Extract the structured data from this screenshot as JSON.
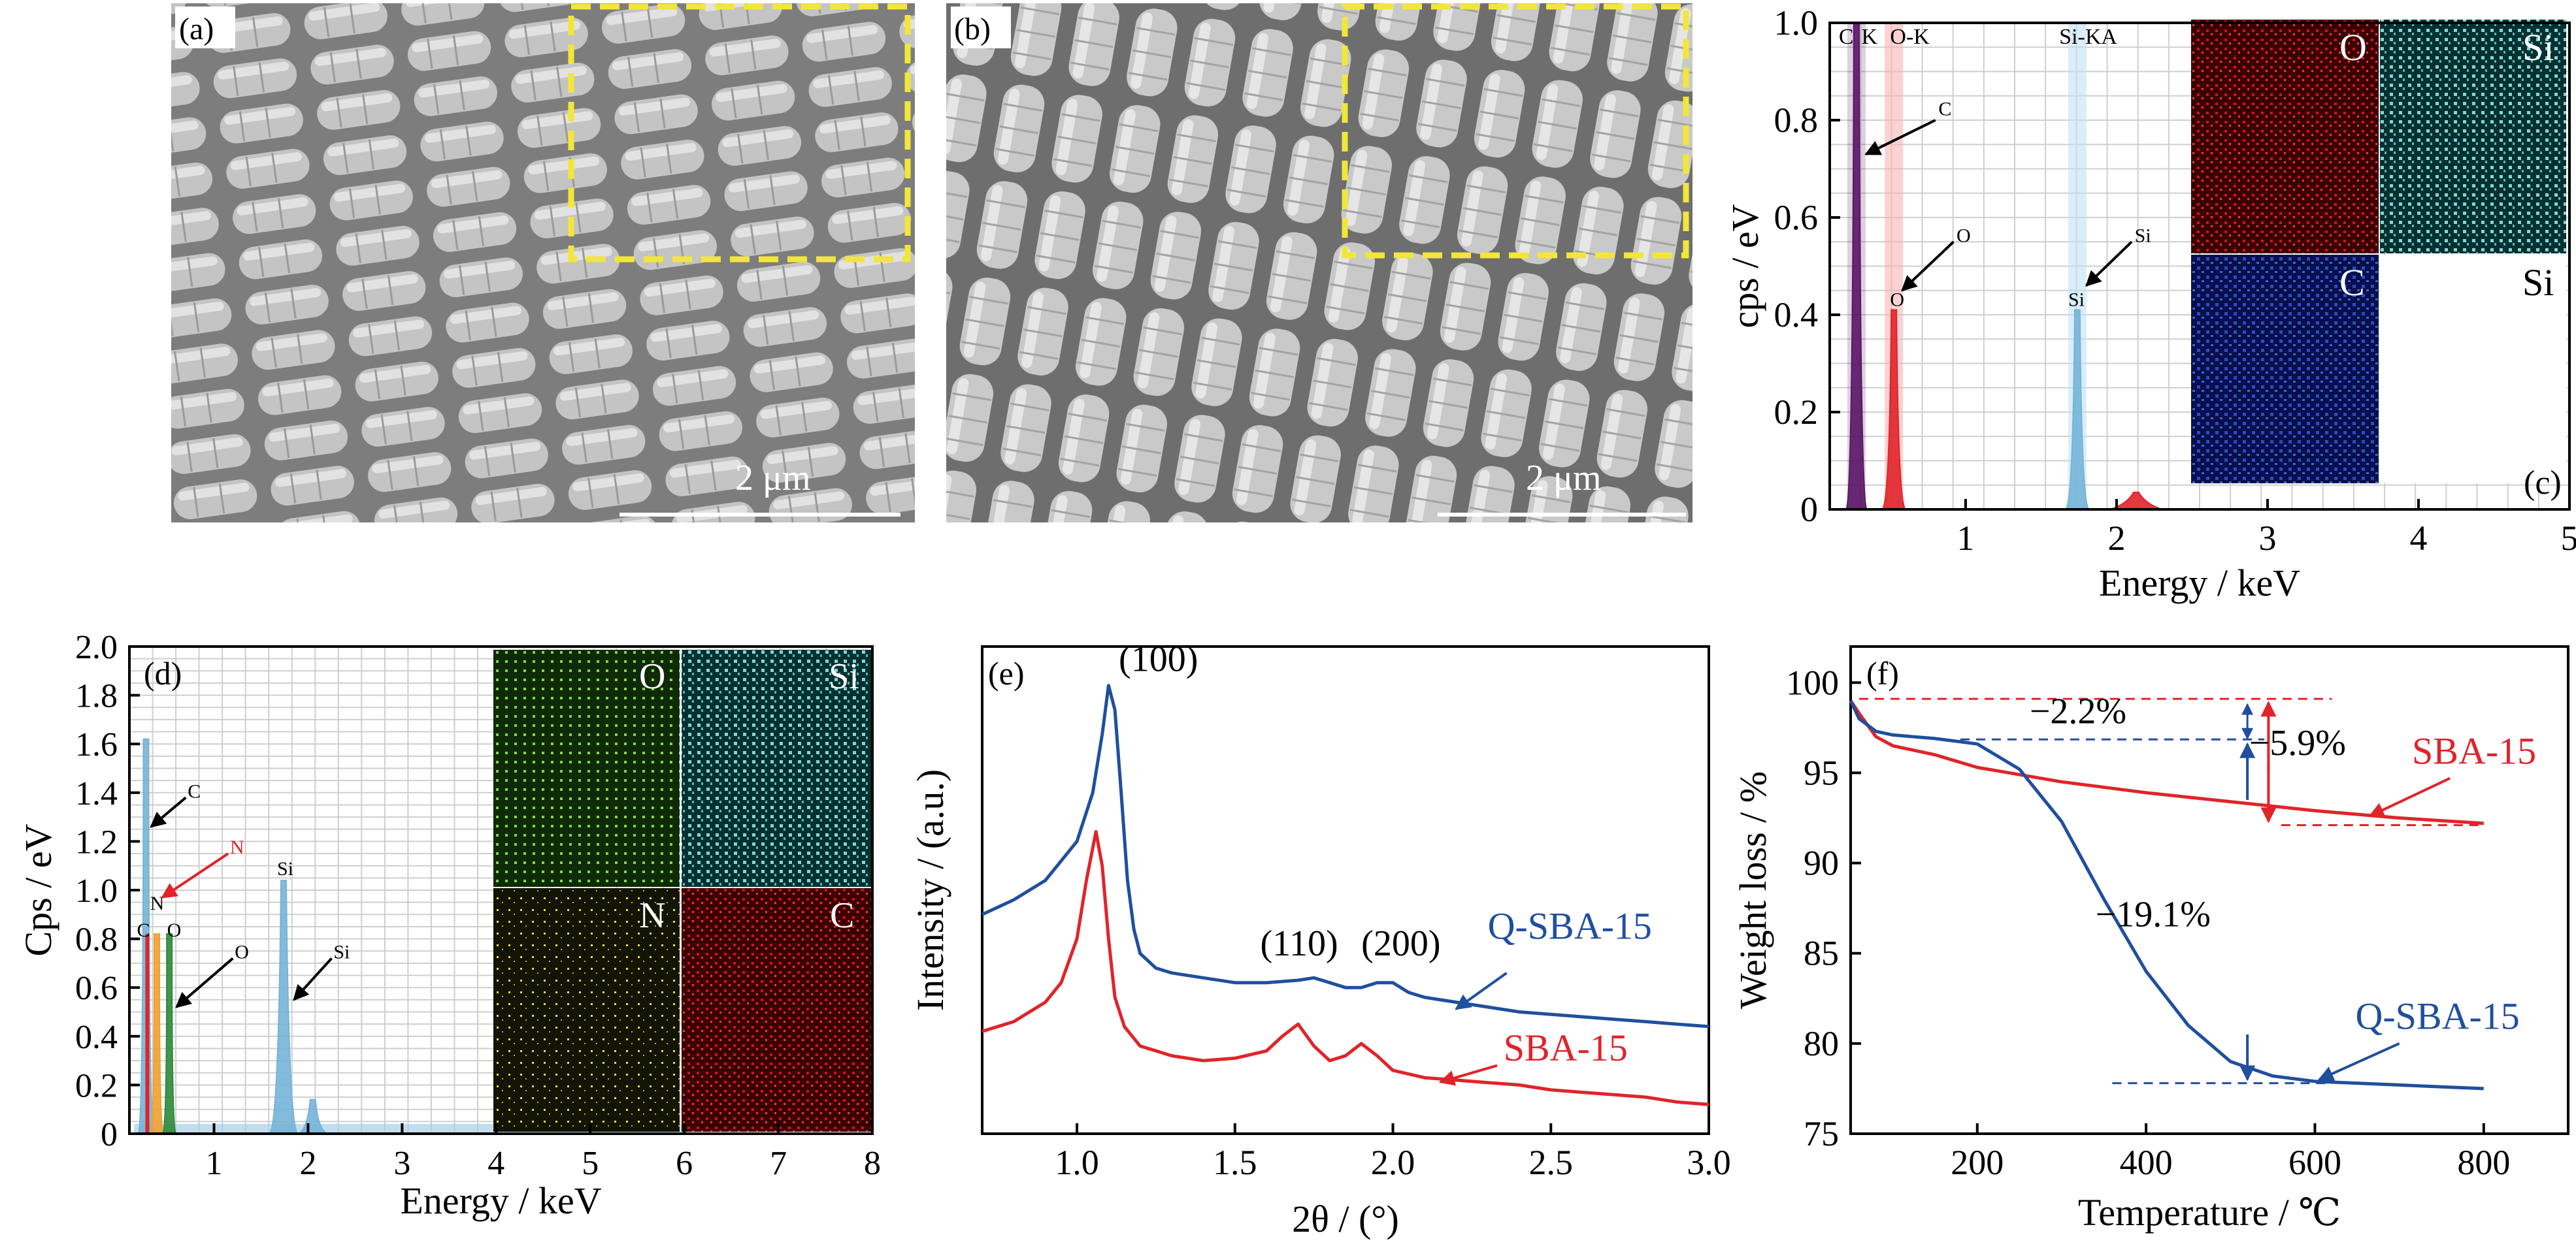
{
  "colors": {
    "red": "#e0242a",
    "blue": "#1f4f9e",
    "lightblue": "#76b4d8",
    "purple": "#5b1466",
    "green": "#2c8a3a",
    "orange": "#f0a030",
    "yellow": "#f2e63a",
    "grid": "#cfcfcf"
  },
  "panel_labels": {
    "a": "(a)",
    "b": "(b)",
    "c": "(c)",
    "d": "(d)",
    "e": "(e)",
    "f": "(f)"
  },
  "sem": {
    "scale_label_a": "2 μm",
    "scale_label_b": "2 μm"
  },
  "maps": {
    "c": {
      "O": "O",
      "Si": "Si",
      "C": "C",
      "Si2": "Si"
    },
    "d": {
      "O": "O",
      "Si": "Si",
      "N": "N",
      "C": "C"
    }
  },
  "chart_data": [
    {
      "id": "c",
      "type": "bar",
      "xlabel": "Energy / keV",
      "ylabel": "cps / eV",
      "xlim": [
        0.1,
        5
      ],
      "ylim": [
        0,
        1.0
      ],
      "xticks": [
        1,
        2,
        3,
        4,
        5
      ],
      "yticks": [
        0,
        0.2,
        0.4,
        0.6,
        0.8,
        1.0
      ],
      "ytick_labels": [
        "0",
        "0.2",
        "0.4",
        "0.6",
        "0.8",
        "1.0"
      ],
      "grid": true,
      "line_labels": [
        "C",
        "K",
        "O-K",
        "Si-KA"
      ],
      "peaks": [
        {
          "element": "C",
          "energy": 0.277,
          "height": 1.0,
          "color": "#5b1466"
        },
        {
          "element": "O",
          "energy": 0.525,
          "height": 0.41,
          "color": "#e0242a"
        },
        {
          "element": "Si",
          "energy": 1.74,
          "height": 0.41,
          "color": "#76b4d8"
        }
      ],
      "annotations": [
        {
          "text": "C",
          "at": [
            0.3,
            0.73
          ]
        },
        {
          "text": "O",
          "at": [
            0.53,
            0.45
          ]
        },
        {
          "text": "Si",
          "at": [
            1.77,
            0.45
          ]
        }
      ]
    },
    {
      "id": "d",
      "type": "bar",
      "xlabel": "Energy / keV",
      "ylabel": "Cps / eV",
      "xlim": [
        0.1,
        8
      ],
      "ylim": [
        0,
        2.0
      ],
      "xticks": [
        1,
        2,
        3,
        4,
        5,
        6,
        7,
        8
      ],
      "yticks": [
        0,
        0.2,
        0.4,
        0.6,
        0.8,
        1.0,
        1.2,
        1.4,
        1.6,
        1.8,
        2.0
      ],
      "ytick_labels": [
        "0",
        "0.2",
        "0.4",
        "0.6",
        "0.8",
        "1.0",
        "1.2",
        "1.4",
        "1.6",
        "1.8",
        "2.0"
      ],
      "grid": true,
      "peaks": [
        {
          "element": "C",
          "energy": 0.277,
          "height": 1.62,
          "color": "#76b4d8"
        },
        {
          "element": "N",
          "energy": 0.392,
          "height": 0.82,
          "color": "#f0a030"
        },
        {
          "element": "O",
          "energy": 0.525,
          "height": 0.82,
          "color": "#2c8a3a"
        },
        {
          "element": "Si",
          "energy": 1.74,
          "height": 1.04,
          "color": "#76b4d8"
        }
      ],
      "peak_labels": [
        "C",
        "N",
        "O",
        "Si"
      ],
      "annotations": [
        {
          "text": "C",
          "at": [
            0.3,
            1.28
          ],
          "color": "#000000"
        },
        {
          "text": "N",
          "at": [
            0.4,
            0.98
          ],
          "color": "#e0242a"
        },
        {
          "text": "O",
          "at": [
            0.55,
            0.55
          ],
          "color": "#000000"
        },
        {
          "text": "Si",
          "at": [
            1.8,
            0.58
          ],
          "color": "#000000"
        }
      ]
    },
    {
      "id": "e",
      "type": "line",
      "xlabel": "2θ / (°)",
      "ylabel": "Intensity / (a.u.)",
      "xlim": [
        0.7,
        3.0
      ],
      "ylim": [
        0,
        100
      ],
      "xticks": [
        1.0,
        1.5,
        2.0,
        2.5,
        3.0
      ],
      "xtick_labels": [
        "1.0",
        "1.5",
        "2.0",
        "2.5",
        "3.0"
      ],
      "series": [
        {
          "name": "Q-SBA-15",
          "color": "#1f4f9e",
          "x": [
            0.7,
            0.8,
            0.9,
            1.0,
            1.05,
            1.08,
            1.1,
            1.12,
            1.14,
            1.16,
            1.18,
            1.2,
            1.25,
            1.3,
            1.4,
            1.5,
            1.6,
            1.7,
            1.75,
            1.8,
            1.85,
            1.9,
            1.95,
            2.0,
            2.05,
            2.1,
            2.2,
            2.3,
            2.4,
            2.5,
            2.6,
            2.7,
            2.8,
            2.9,
            3.0
          ],
          "y": [
            45,
            48,
            52,
            60,
            70,
            82,
            92,
            87,
            70,
            52,
            42,
            37,
            34,
            33,
            32,
            31,
            31,
            31.5,
            32,
            31,
            30,
            30,
            31,
            31,
            29,
            28,
            27,
            26,
            25,
            24.5,
            24,
            23.5,
            23,
            22.5,
            22
          ]
        },
        {
          "name": "SBA-15",
          "color": "#e0242a",
          "x": [
            0.7,
            0.8,
            0.9,
            0.95,
            1.0,
            1.03,
            1.06,
            1.08,
            1.1,
            1.12,
            1.15,
            1.2,
            1.3,
            1.4,
            1.5,
            1.6,
            1.65,
            1.7,
            1.75,
            1.8,
            1.85,
            1.9,
            1.95,
            2.0,
            2.1,
            2.2,
            2.3,
            2.4,
            2.5,
            2.6,
            2.7,
            2.8,
            2.9,
            3.0
          ],
          "y": [
            21,
            23,
            27,
            31,
            40,
            52,
            62,
            55,
            40,
            28,
            22,
            18,
            16,
            15,
            15.5,
            17,
            20,
            22.5,
            18,
            15,
            16,
            18.5,
            16,
            13,
            11.5,
            11,
            10.5,
            10,
            9,
            8.5,
            8,
            7.5,
            6.5,
            6
          ]
        }
      ],
      "peak_labels": [
        "(100)",
        "(110)",
        "(200)"
      ],
      "legend": [
        "Q-SBA-15",
        "SBA-15"
      ]
    },
    {
      "id": "f",
      "type": "line",
      "xlabel": "Temperature / ℃",
      "ylabel": "Weight loss  /  %",
      "xlim": [
        50,
        900
      ],
      "ylim": [
        75,
        102
      ],
      "xticks": [
        200,
        400,
        600,
        800
      ],
      "yticks": [
        75,
        80,
        85,
        90,
        95,
        100
      ],
      "series": [
        {
          "name": "SBA-15",
          "color": "#e0242a",
          "x": [
            50,
            60,
            80,
            100,
            150,
            200,
            300,
            400,
            500,
            600,
            700,
            800
          ],
          "y": [
            99.0,
            98.3,
            97.0,
            96.5,
            96.0,
            95.3,
            94.5,
            93.9,
            93.4,
            92.9,
            92.5,
            92.2
          ]
        },
        {
          "name": "Q-SBA-15",
          "color": "#1f4f9e",
          "x": [
            50,
            60,
            80,
            100,
            150,
            200,
            250,
            300,
            350,
            400,
            450,
            500,
            550,
            600,
            650,
            700,
            750,
            800
          ],
          "y": [
            99.0,
            98.0,
            97.3,
            97.1,
            96.9,
            96.6,
            95.2,
            92.3,
            88.0,
            84.0,
            81.0,
            79.0,
            78.2,
            77.9,
            77.8,
            77.7,
            77.6,
            77.5
          ]
        }
      ],
      "annotations": [
        "−2.2%",
        "−5.9%",
        "−19.1%"
      ],
      "legend": [
        "SBA-15",
        "Q-SBA-15"
      ]
    }
  ]
}
